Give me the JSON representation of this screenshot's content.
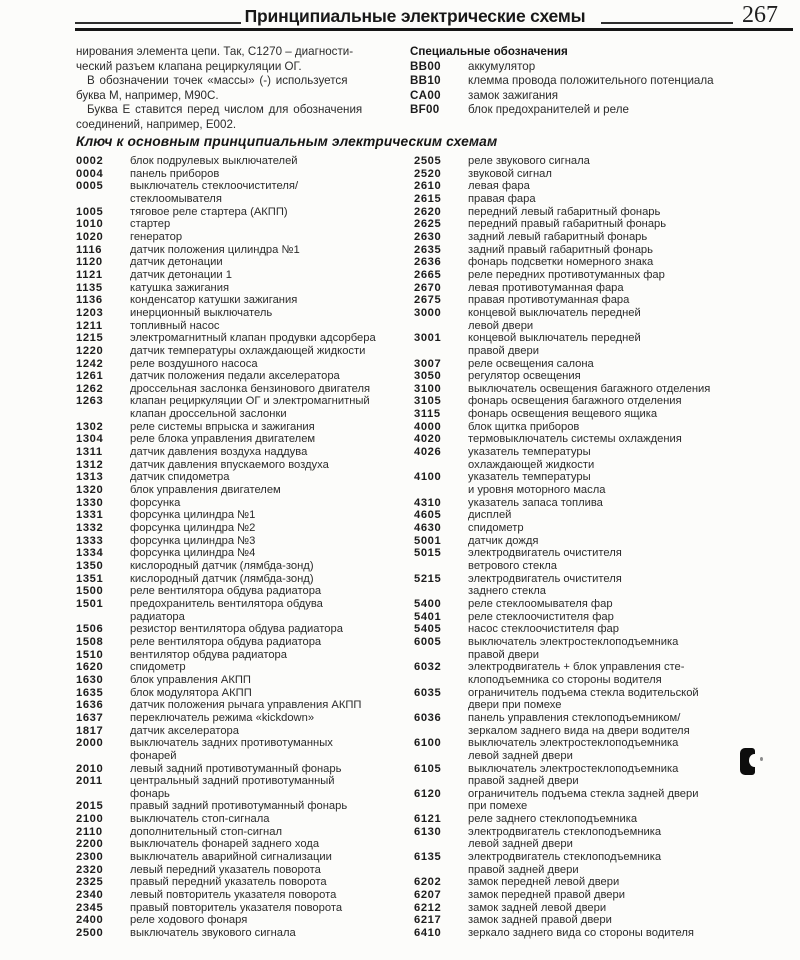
{
  "colors": {
    "paper": "#fcfcfa",
    "ink": "#2b2b2b"
  },
  "header": {
    "title": "Принципиальные электрические схемы",
    "page_number": "267"
  },
  "intro": {
    "paragraphs": [
      [
        "нирования элемента цепи. Так, С1270 – диагности-",
        "ческий разъем клапана рециркуляции ОГ."
      ],
      [
        "В обозначении точек «массы» (-) используется",
        "буква М, например, М90С."
      ],
      [
        "Буква Е ставится перед числом для обозначения",
        "соединений, например, Е002."
      ]
    ]
  },
  "special": {
    "heading": "Специальные обозначения",
    "items": [
      {
        "code": "BB00",
        "desc": "аккумулятор"
      },
      {
        "code": "BB10",
        "desc": "клемма провода положительного потенциала"
      },
      {
        "code": "CA00",
        "desc": "замок зажигания"
      },
      {
        "code": "BF00",
        "desc": "блок предохранителей и реле"
      }
    ]
  },
  "key": {
    "heading": "Ключ к основным принципиальным электрическим схемам",
    "left": [
      {
        "code": "0002",
        "lines": [
          "блок подрулевых выключателей"
        ]
      },
      {
        "code": "0004",
        "lines": [
          "панель приборов"
        ]
      },
      {
        "code": "0005",
        "lines": [
          "выключатель стеклоочистителя/",
          "стеклоомывателя"
        ]
      },
      {
        "code": "1005",
        "lines": [
          "тяговое реле стартера (АКПП)"
        ]
      },
      {
        "code": "1010",
        "lines": [
          "стартер"
        ]
      },
      {
        "code": "1020",
        "lines": [
          "генератор"
        ]
      },
      {
        "code": "1116",
        "lines": [
          "датчик положения цилиндра №1"
        ]
      },
      {
        "code": "1120",
        "lines": [
          "датчик детонации"
        ]
      },
      {
        "code": "1121",
        "lines": [
          "датчик детонации 1"
        ]
      },
      {
        "code": "1135",
        "lines": [
          "катушка зажигания"
        ]
      },
      {
        "code": "1136",
        "lines": [
          "конденсатор катушки зажигания"
        ]
      },
      {
        "code": "1203",
        "lines": [
          "инерционный выключатель"
        ]
      },
      {
        "code": "1211",
        "lines": [
          "топливный насос"
        ]
      },
      {
        "code": "1215",
        "lines": [
          "электромагнитный клапан продувки адсорбера"
        ]
      },
      {
        "code": "1220",
        "lines": [
          "датчик температуры охлаждающей жидкости"
        ]
      },
      {
        "code": "1242",
        "lines": [
          "реле воздушного насоса"
        ]
      },
      {
        "code": "1261",
        "lines": [
          "датчик положения педали акселератора"
        ]
      },
      {
        "code": "1262",
        "lines": [
          "дроссельная заслонка бензинового двигателя"
        ]
      },
      {
        "code": "1263",
        "lines": [
          "клапан рециркуляции ОГ и электромагнитный",
          "клапан дроссельной заслонки"
        ]
      },
      {
        "code": "1302",
        "lines": [
          "реле системы впрыска и зажигания"
        ]
      },
      {
        "code": "1304",
        "lines": [
          "реле блока управления двигателем"
        ]
      },
      {
        "code": "1311",
        "lines": [
          "датчик давления воздуха наддува"
        ]
      },
      {
        "code": "1312",
        "lines": [
          "датчик давления впускаемого воздуха"
        ]
      },
      {
        "code": "1313",
        "lines": [
          "датчик спидометра"
        ]
      },
      {
        "code": "1320",
        "lines": [
          "блок управления двигателем"
        ]
      },
      {
        "code": "1330",
        "lines": [
          "форсунка"
        ]
      },
      {
        "code": "1331",
        "lines": [
          "форсунка цилиндра №1"
        ]
      },
      {
        "code": "1332",
        "lines": [
          "форсунка цилиндра №2"
        ]
      },
      {
        "code": "1333",
        "lines": [
          "форсунка цилиндра №3"
        ]
      },
      {
        "code": "1334",
        "lines": [
          "форсунка цилиндра №4"
        ]
      },
      {
        "code": "1350",
        "lines": [
          "кислородный датчик (лямбда-зонд)"
        ]
      },
      {
        "code": "1351",
        "lines": [
          "кислородный датчик (лямбда-зонд)"
        ]
      },
      {
        "code": "1500",
        "lines": [
          "реле вентилятора обдува радиатора"
        ]
      },
      {
        "code": "1501",
        "lines": [
          "предохранитель вентилятора обдува",
          "радиатора"
        ]
      },
      {
        "code": "1506",
        "lines": [
          "резистор вентилятора обдува радиатора"
        ]
      },
      {
        "code": "1508",
        "lines": [
          "реле вентилятора обдува радиатора"
        ]
      },
      {
        "code": "1510",
        "lines": [
          "вентилятор обдува радиатора"
        ]
      },
      {
        "code": "1620",
        "lines": [
          "спидометр"
        ]
      },
      {
        "code": "1630",
        "lines": [
          "блок управления АКПП"
        ]
      },
      {
        "code": "1635",
        "lines": [
          "блок модулятора АКПП"
        ]
      },
      {
        "code": "1636",
        "lines": [
          "датчик положения рычага управления АКПП"
        ]
      },
      {
        "code": "1637",
        "lines": [
          "переключатель режима «kickdown»"
        ]
      },
      {
        "code": "1817",
        "lines": [
          "датчик акселератора"
        ]
      },
      {
        "code": "2000",
        "lines": [
          "выключатель задних противотуманных",
          "фонарей"
        ]
      },
      {
        "code": "2010",
        "lines": [
          "левый задний противотуманный фонарь"
        ]
      },
      {
        "code": "2011",
        "lines": [
          "центральный задний противотуманный",
          "фонарь"
        ]
      },
      {
        "code": "2015",
        "lines": [
          "правый задний противотуманный фонарь"
        ]
      },
      {
        "code": "2100",
        "lines": [
          "выключатель стоп-сигнала"
        ]
      },
      {
        "code": "2110",
        "lines": [
          "дополнительный стоп-сигнал"
        ]
      },
      {
        "code": "2200",
        "lines": [
          "выключатель фонарей заднего хода"
        ]
      },
      {
        "code": "2300",
        "lines": [
          "выключатель аварийной сигнализации"
        ]
      },
      {
        "code": "2320",
        "lines": [
          "левый передний указатель поворота"
        ]
      },
      {
        "code": "2325",
        "lines": [
          "правый передний указатель поворота"
        ]
      },
      {
        "code": "2340",
        "lines": [
          "левый повторитель указателя поворота"
        ]
      },
      {
        "code": "2345",
        "lines": [
          "правый повторитель указателя поворота"
        ]
      },
      {
        "code": "2400",
        "lines": [
          "реле ходового фонаря"
        ]
      },
      {
        "code": "2500",
        "lines": [
          "выключатель звукового сигнала"
        ]
      }
    ],
    "right": [
      {
        "code": "2505",
        "lines": [
          "реле звукового сигнала"
        ]
      },
      {
        "code": "2520",
        "lines": [
          "звуковой сигнал"
        ]
      },
      {
        "code": "2610",
        "lines": [
          "левая фара"
        ]
      },
      {
        "code": "2615",
        "lines": [
          "правая фара"
        ]
      },
      {
        "code": "2620",
        "lines": [
          "передний левый габаритный фонарь"
        ]
      },
      {
        "code": "2625",
        "lines": [
          "передний правый габаритный фонарь"
        ]
      },
      {
        "code": "2630",
        "lines": [
          "задний левый габаритный фонарь"
        ]
      },
      {
        "code": "2635",
        "lines": [
          "задний правый габаритный фонарь"
        ]
      },
      {
        "code": "2636",
        "lines": [
          "фонарь подсветки номерного знака"
        ]
      },
      {
        "code": "2665",
        "lines": [
          "реле передних противотуманных фар"
        ]
      },
      {
        "code": "2670",
        "lines": [
          "левая противотуманная фара"
        ]
      },
      {
        "code": "2675",
        "lines": [
          "правая противотуманная фара"
        ]
      },
      {
        "code": "3000",
        "lines": [
          "концевой выключатель передней",
          "левой двери"
        ]
      },
      {
        "code": "3001",
        "lines": [
          "концевой выключатель передней",
          "правой двери"
        ]
      },
      {
        "code": "3007",
        "lines": [
          "реле освещения салона"
        ]
      },
      {
        "code": "3050",
        "lines": [
          "регулятор освещения"
        ]
      },
      {
        "code": "3100",
        "lines": [
          "выключатель освещения багажного отделения"
        ]
      },
      {
        "code": "3105",
        "lines": [
          "фонарь освещения багажного отделения"
        ]
      },
      {
        "code": "3115",
        "lines": [
          "фонарь освещения вещевого ящика"
        ]
      },
      {
        "code": "4000",
        "lines": [
          "блок щитка приборов"
        ]
      },
      {
        "code": "4020",
        "lines": [
          "термовыключатель системы охлаждения"
        ]
      },
      {
        "code": "4026",
        "lines": [
          "указатель температуры",
          "охлаждающей жидкости"
        ]
      },
      {
        "code": "4100",
        "lines": [
          "указатель температуры",
          "и уровня моторного масла"
        ]
      },
      {
        "code": "4310",
        "lines": [
          "указатель запаса топлива"
        ]
      },
      {
        "code": "4605",
        "lines": [
          "дисплей"
        ]
      },
      {
        "code": "4630",
        "lines": [
          "спидометр"
        ]
      },
      {
        "code": "5001",
        "lines": [
          "датчик дождя"
        ]
      },
      {
        "code": "5015",
        "lines": [
          "электродвигатель очистителя",
          "ветрового стекла"
        ]
      },
      {
        "code": "5215",
        "lines": [
          "электродвигатель очистителя",
          "заднего стекла"
        ]
      },
      {
        "code": "5400",
        "lines": [
          "реле стеклоомывателя фар"
        ]
      },
      {
        "code": "5401",
        "lines": [
          "реле стеклоочистителя фар"
        ]
      },
      {
        "code": "5405",
        "lines": [
          "насос стеклоочистителя фар"
        ]
      },
      {
        "code": "6005",
        "lines": [
          "выключатель электростеклоподъемника",
          "правой двери"
        ]
      },
      {
        "code": "6032",
        "lines": [
          "электродвигатель + блок управления сте-",
          "клоподъемника со стороны водителя"
        ]
      },
      {
        "code": "6035",
        "lines": [
          "ограничитель подъема стекла водительской",
          "двери при помехе"
        ]
      },
      {
        "code": "6036",
        "lines": [
          "панель управления стеклоподъемником/",
          "зеркалом заднего вида на двери водителя"
        ]
      },
      {
        "code": "6100",
        "lines": [
          "выключатель электростеклоподъемника",
          "левой задней двери"
        ]
      },
      {
        "code": "6105",
        "lines": [
          "выключатель электростеклоподъемника",
          "правой задней двери"
        ]
      },
      {
        "code": "6120",
        "lines": [
          "ограничитель подъема стекла задней двери",
          "при помехе"
        ]
      },
      {
        "code": "6121",
        "lines": [
          "реле заднего стеклоподъемника"
        ]
      },
      {
        "code": "6130",
        "lines": [
          "электродвигатель стеклоподъемника",
          "левой задней двери"
        ]
      },
      {
        "code": "6135",
        "lines": [
          "электродвигатель стеклоподъемника",
          "правой задней двери"
        ]
      },
      {
        "code": "6202",
        "lines": [
          "замок передней левой двери"
        ]
      },
      {
        "code": "6207",
        "lines": [
          "замок передней правой двери"
        ]
      },
      {
        "code": "6212",
        "lines": [
          "замок задней левой двери"
        ]
      },
      {
        "code": "6217",
        "lines": [
          "замок задней правой двери"
        ]
      },
      {
        "code": "6410",
        "lines": [
          "зеркало заднего вида со стороны водителя"
        ]
      }
    ]
  }
}
